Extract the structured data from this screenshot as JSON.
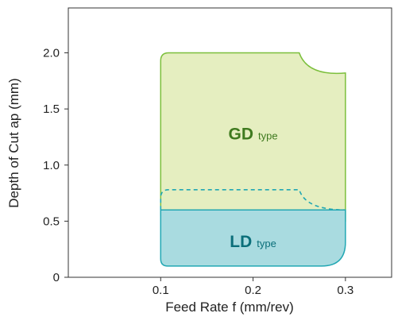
{
  "chart_data": {
    "type": "area",
    "xlabel": "Feed Rate f (mm/rev)",
    "ylabel": "Depth of Cut ap (mm)",
    "xlim": [
      0.0,
      0.35
    ],
    "ylim": [
      0,
      2.4
    ],
    "x_ticks": [
      0.1,
      0.2,
      0.3
    ],
    "x_tick_labels": [
      "0.1",
      "0.2",
      "0.3"
    ],
    "y_ticks": [
      0,
      0.5,
      1.0,
      1.5,
      2.0
    ],
    "y_tick_labels": [
      "0",
      "0.5",
      "1.0",
      "1.5",
      "2.0"
    ],
    "grid": false,
    "regions": [
      {
        "name": "GD",
        "suffix": "type",
        "color": "#e5eec0",
        "edge_color": "#7cbf3c",
        "label_color": "#3f7a1f",
        "label_at": [
          0.2,
          1.23
        ],
        "boundary": [
          [
            0.1,
            0.5
          ],
          [
            0.1,
            1.95
          ],
          [
            0.25,
            2.0
          ],
          [
            0.3,
            1.82
          ],
          [
            0.3,
            0.5
          ]
        ]
      },
      {
        "name": "LD",
        "suffix": "type",
        "color": "#a9dbe0",
        "edge_color": "#21a7b3",
        "label_color": "#0b6f7a",
        "label_at": [
          0.2,
          0.27
        ],
        "boundary": [
          [
            0.1,
            0.1
          ],
          [
            0.1,
            0.6
          ],
          [
            0.3,
            0.6
          ],
          [
            0.3,
            0.2
          ],
          [
            0.27,
            0.1
          ]
        ]
      }
    ],
    "dashed_boundary": {
      "color": "#21a7b3",
      "points": [
        [
          0.1,
          0.7
        ],
        [
          0.25,
          0.78
        ],
        [
          0.3,
          0.6
        ]
      ]
    }
  }
}
